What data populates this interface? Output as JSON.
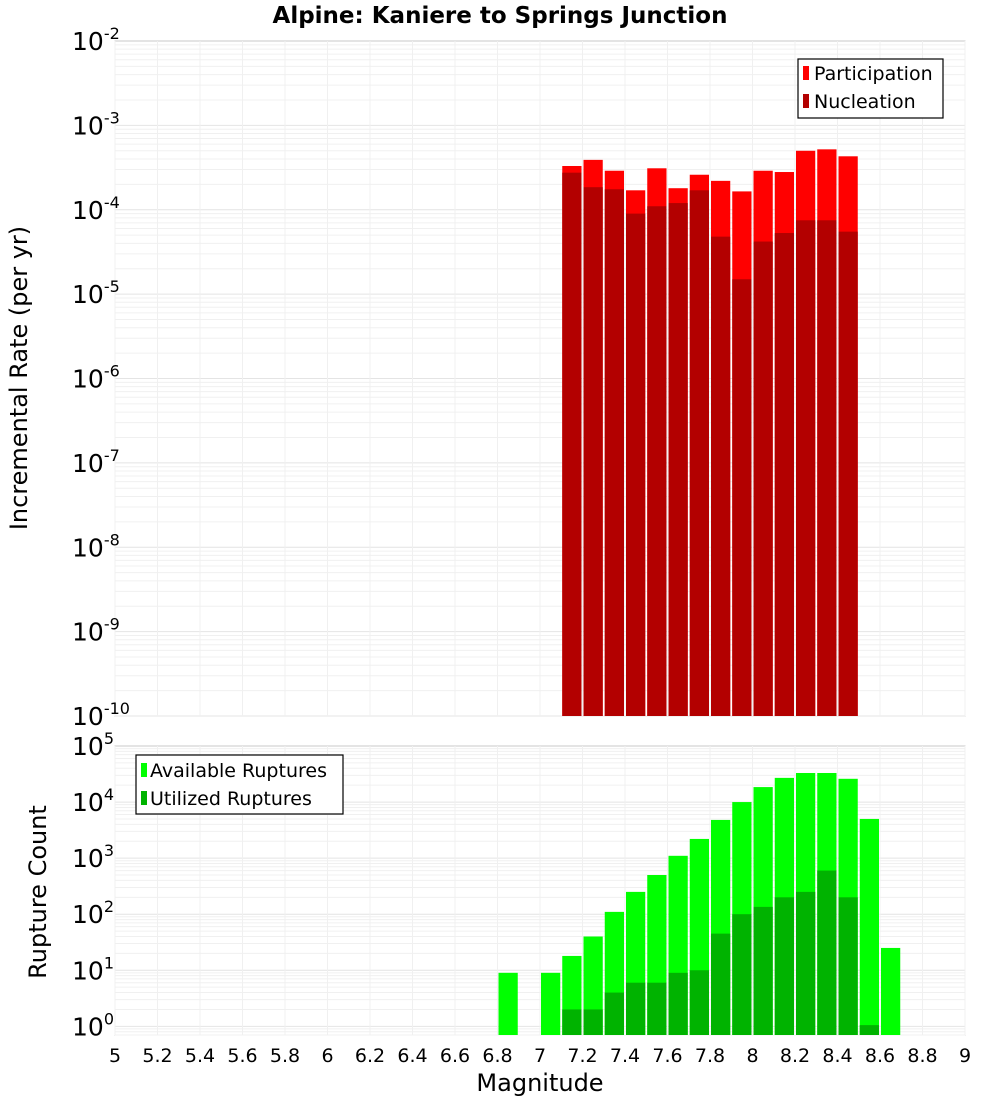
{
  "figure": {
    "title": "Alpine: Kaniere to Springs Junction"
  },
  "chart_data": [
    {
      "type": "bar",
      "scale": "log",
      "ylabel": "Incremental Rate (per yr)",
      "xlabel": "",
      "xlim": [
        5,
        9
      ],
      "ylim": [
        1e-10,
        0.01
      ],
      "grid": true,
      "legend_position": "top-right",
      "y_ticks": [
        {
          "base": "10",
          "exp": "-2"
        },
        {
          "base": "10",
          "exp": "-3"
        },
        {
          "base": "10",
          "exp": "-4"
        },
        {
          "base": "10",
          "exp": "-5"
        },
        {
          "base": "10",
          "exp": "-6"
        },
        {
          "base": "10",
          "exp": "-7"
        },
        {
          "base": "10",
          "exp": "-8"
        },
        {
          "base": "10",
          "exp": "-9"
        },
        {
          "base": "10",
          "exp": "-10"
        }
      ],
      "x": [
        7.15,
        7.25,
        7.35,
        7.45,
        7.55,
        7.65,
        7.75,
        7.85,
        7.95,
        8.05,
        8.15,
        8.25,
        8.35,
        8.45
      ],
      "series": [
        {
          "name": "Participation",
          "color": "#ff0000",
          "values": [
            0.00033,
            0.00039,
            0.00029,
            0.00017,
            0.00031,
            0.00018,
            0.00026,
            0.00022,
            0.000165,
            0.00029,
            0.00028,
            0.0005,
            0.00052,
            0.00043
          ]
        },
        {
          "name": "Nucleation",
          "color": "#b30000",
          "values": [
            0.000275,
            0.000185,
            0.000175,
            9e-05,
            0.00011,
            0.00012,
            0.00017,
            4.8e-05,
            1.5e-05,
            4.2e-05,
            5.3e-05,
            7.5e-05,
            7.5e-05,
            5.5e-05
          ]
        }
      ]
    },
    {
      "type": "bar",
      "scale": "log",
      "ylabel": "Rupture Count",
      "xlabel": "Magnitude",
      "xlim": [
        5,
        9
      ],
      "ylim": [
        0.7,
        100000.0
      ],
      "grid": true,
      "legend_position": "top-left",
      "y_ticks": [
        {
          "base": "10",
          "exp": "0"
        },
        {
          "base": "10",
          "exp": "1"
        },
        {
          "base": "10",
          "exp": "2"
        },
        {
          "base": "10",
          "exp": "3"
        },
        {
          "base": "10",
          "exp": "4"
        },
        {
          "base": "10",
          "exp": "5"
        }
      ],
      "x_ticks": [
        "5",
        "5.2",
        "5.4",
        "5.6",
        "5.8",
        "6",
        "6.2",
        "6.4",
        "6.6",
        "6.8",
        "7",
        "7.2",
        "7.4",
        "7.6",
        "7.8",
        "8",
        "8.2",
        "8.4",
        "8.6",
        "8.8",
        "9"
      ],
      "x": [
        6.85,
        7.05,
        7.15,
        7.25,
        7.35,
        7.45,
        7.55,
        7.65,
        7.75,
        7.85,
        7.95,
        8.05,
        8.15,
        8.25,
        8.35,
        8.45,
        8.55,
        8.65
      ],
      "series": [
        {
          "name": "Available Ruptures",
          "color": "#00ff00",
          "values": [
            9,
            9,
            18,
            40,
            110,
            250,
            500,
            1100,
            2200,
            4800,
            10000,
            18500,
            27000,
            33000,
            33000,
            26000,
            5000,
            25
          ]
        },
        {
          "name": "Utilized Ruptures",
          "color": "#00b300",
          "values": [
            null,
            null,
            2,
            2,
            4,
            6,
            6,
            9,
            10,
            45,
            100,
            135,
            200,
            250,
            600,
            200,
            1.05,
            null
          ]
        }
      ]
    }
  ]
}
